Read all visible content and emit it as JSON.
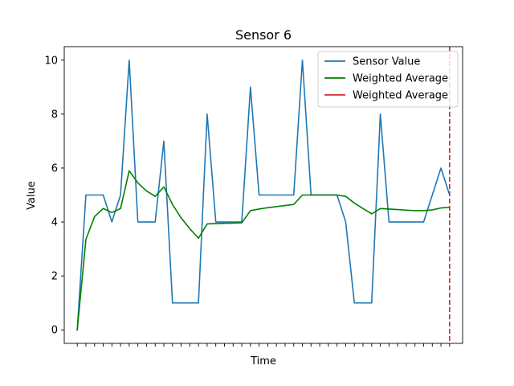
{
  "chart_data": {
    "type": "line",
    "title": "Sensor 6",
    "xlabel": "Time",
    "ylabel": "Value",
    "ylim": [
      -0.5,
      10.5
    ],
    "xlim": [
      -1.5,
      44.5
    ],
    "yticks": [
      0,
      2,
      4,
      6,
      8,
      10
    ],
    "xticks_labeled": false,
    "grid": false,
    "legend_position": "top-right",
    "x": [
      0,
      1,
      2,
      3,
      4,
      5,
      6,
      7,
      8,
      9,
      10,
      11,
      12,
      13,
      14,
      15,
      16,
      17,
      18,
      19,
      20,
      21,
      22,
      23,
      24,
      25,
      26,
      27,
      28,
      29,
      30,
      31,
      32,
      33,
      34,
      35,
      36,
      37,
      38,
      39,
      40,
      41,
      42,
      43
    ],
    "series": [
      {
        "name": "Sensor Value",
        "color": "#1f77b4",
        "style": "solid",
        "values": [
          0,
          5,
          5,
          5,
          4,
          5,
          10,
          4,
          4,
          4,
          7,
          1,
          1,
          1,
          1,
          8,
          4,
          4,
          4,
          4,
          9,
          5,
          5,
          5,
          5,
          5,
          10,
          5,
          5,
          5,
          5,
          4,
          1,
          1,
          1,
          8,
          4,
          4,
          4,
          4,
          4,
          5,
          6,
          5
        ]
      },
      {
        "name": "Weighted Average",
        "color": "#008000",
        "style": "solid",
        "values": [
          0,
          3.35,
          4.2,
          4.5,
          4.35,
          4.5,
          5.9,
          5.45,
          5.15,
          4.95,
          5.3,
          4.65,
          4.15,
          3.75,
          3.4,
          3.93,
          3.94,
          3.95,
          3.96,
          3.97,
          4.42,
          4.48,
          4.53,
          4.57,
          4.61,
          4.65,
          5,
          5,
          5,
          5,
          5,
          4.95,
          4.7,
          4.5,
          4.3,
          4.5,
          4.48,
          4.46,
          4.44,
          4.42,
          4.42,
          4.45,
          4.52,
          4.54
        ]
      },
      {
        "name": "Weighted Average",
        "color": "#d62728",
        "style": "dashed",
        "vline_x": 43
      }
    ]
  }
}
